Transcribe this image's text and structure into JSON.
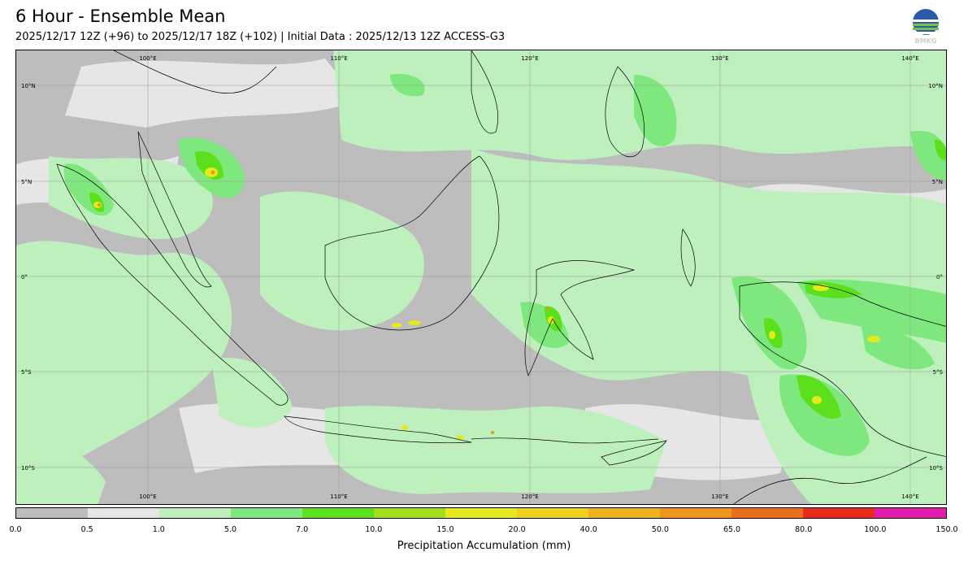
{
  "header": {
    "title": "6 Hour - Ensemble Mean",
    "subtitle": "2025/12/17 12Z (+96) to 2025/12/17 18Z (+102) | Initial Data : 2025/12/13 12Z ACCESS-G3",
    "logo_text": "BMKG"
  },
  "map": {
    "region": "Indonesia",
    "lon_labels_top": [
      "100°E",
      "110°E",
      "120°E",
      "130°E",
      "140°E"
    ],
    "lon_labels_bottom": [
      "100°E",
      "110°E",
      "120°E",
      "130°E",
      "140°E"
    ],
    "lat_labels_left": [
      "10°N",
      "5°N",
      "0°",
      "5°S",
      "10°S"
    ],
    "lat_labels_right": [
      "10°N",
      "5°N",
      "0°",
      "5°S",
      "10°S"
    ]
  },
  "colorbar": {
    "label": "Precipitation Accumulation (mm)",
    "ticks": [
      "0.0",
      "0.5",
      "1.0",
      "5.0",
      "7.0",
      "10.0",
      "15.0",
      "20.0",
      "40.0",
      "50.0",
      "65.0",
      "80.0",
      "100.0",
      "150.0"
    ],
    "colors": [
      "#bdbdbd",
      "#e6e6e6",
      "#bdf0bd",
      "#7ee87e",
      "#5ce01c",
      "#a2e01c",
      "#e6ea1c",
      "#eed21c",
      "#eeb21c",
      "#ee961c",
      "#ea6e1c",
      "#ea2a1c",
      "#e41cae"
    ]
  }
}
